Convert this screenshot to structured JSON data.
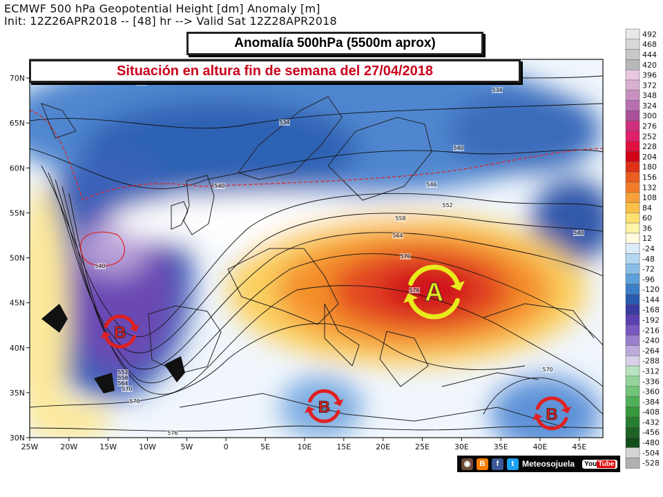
{
  "header": {
    "line1": "ECMWF 500 hPa Geopotential Height [dm] Anomaly [m]",
    "line2": "Init: 12Z26APR2018 -- [48] hr --> Valid Sat 12Z28APR2018"
  },
  "banners": {
    "title": "Anomalía 500hPa (5500m aprox)",
    "subtitle": "Situación en altura fin de semana del 27/04/2018"
  },
  "map": {
    "lon_ticks": [
      "25W",
      "20W",
      "15W",
      "10W",
      "5W",
      "0",
      "5E",
      "10E",
      "15E",
      "20E",
      "25E",
      "30E",
      "35E",
      "40E",
      "45E"
    ],
    "lat_ticks": [
      "70N",
      "65N",
      "60N",
      "55N",
      "50N",
      "45N",
      "40N",
      "35N",
      "30N"
    ],
    "contour_labels": [
      "534",
      "534",
      "534",
      "540",
      "540",
      "540",
      "546",
      "552",
      "558",
      "564",
      "570",
      "570",
      "576",
      "552",
      "558",
      "564",
      "570",
      "576",
      "540",
      "570"
    ],
    "high_symbol": {
      "letter": "A",
      "lon": 26.5,
      "lat": 46.2
    },
    "low_symbols": [
      {
        "letter": "B",
        "lon": -13.5,
        "lat": 41.8
      },
      {
        "letter": "B",
        "lon": 12.5,
        "lat": 33.5
      },
      {
        "letter": "B",
        "lon": 41.5,
        "lat": 32.7
      }
    ],
    "colors": {
      "high_arrows": "#e8ea1c",
      "low_arrows": "#e02020",
      "freezing_line": "#e02020"
    }
  },
  "colorbar": {
    "labels": [
      "492",
      "468",
      "444",
      "420",
      "396",
      "372",
      "348",
      "324",
      "300",
      "276",
      "252",
      "228",
      "204",
      "180",
      "156",
      "132",
      "108",
      "84",
      "60",
      "36",
      "12",
      "-24",
      "-48",
      "-72",
      "-96",
      "-120",
      "-144",
      "-168",
      "-192",
      "-216",
      "-240",
      "-264",
      "-288",
      "-312",
      "-336",
      "-360",
      "-384",
      "-408",
      "-432",
      "-456",
      "-480",
      "-504",
      "-528"
    ],
    "colors": [
      "#e8e8e8",
      "#d8d8d8",
      "#c8c8c8",
      "#b8b8b8",
      "#e8c8e0",
      "#d8b0d0",
      "#c890c0",
      "#b870b0",
      "#a85098",
      "#d03080",
      "#e0206a",
      "#e01040",
      "#d00018",
      "#e03018",
      "#ec5c20",
      "#f47c28",
      "#f8a038",
      "#fcc048",
      "#fde070",
      "#fef4a8",
      "#fffbe0",
      "#dcecf8",
      "#b4d8f2",
      "#8cbfe8",
      "#5ea0da",
      "#3c7ec8",
      "#2a5aae",
      "#3a3aa0",
      "#5a40b0",
      "#7a5ac0",
      "#9a80cc",
      "#bcaadc",
      "#d8d0ea",
      "#b8e4c0",
      "#94d49c",
      "#70c478",
      "#50b058",
      "#38983c",
      "#287e30",
      "#1c6424",
      "#124c1a",
      "#d4d4d4",
      "#b0b0b0"
    ]
  },
  "footer": {
    "brand": "Meteosojuela",
    "youtube_label": "You",
    "youtube_tube": "Tube",
    "icons": [
      "instagram-icon",
      "blogger-icon",
      "facebook-icon",
      "twitter-icon"
    ]
  }
}
